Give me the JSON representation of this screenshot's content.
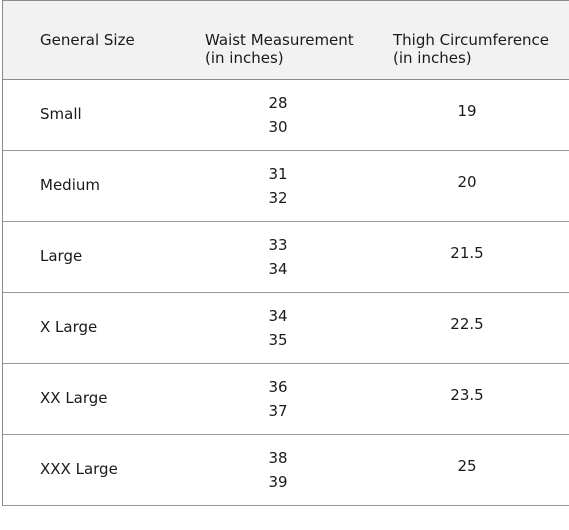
{
  "header": {
    "size": "General Size",
    "waist_title": "Waist Measurement",
    "waist_unit": "(in inches)",
    "thigh_title": "Thigh Circumference",
    "thigh_unit": "(in inches)"
  },
  "rows": [
    {
      "size": "Small",
      "waist_low": "28",
      "waist_high": "30",
      "thigh": "19"
    },
    {
      "size": "Medium",
      "waist_low": "31",
      "waist_high": "32",
      "thigh": "20"
    },
    {
      "size": "Large",
      "waist_low": "33",
      "waist_high": "34",
      "thigh": "21.5"
    },
    {
      "size": "X Large",
      "waist_low": "34",
      "waist_high": "35",
      "thigh": "22.5"
    },
    {
      "size": "XX Large",
      "waist_low": "36",
      "waist_high": "37",
      "thigh": "23.5"
    },
    {
      "size": "XXX Large",
      "waist_low": "38",
      "waist_high": "39",
      "thigh": "25"
    }
  ]
}
